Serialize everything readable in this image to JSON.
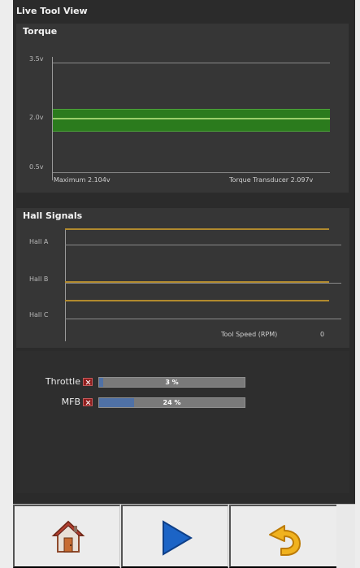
{
  "app": {
    "window_title": "Live Tool View"
  },
  "torque": {
    "title": "Torque",
    "axis_labels": [
      "3.5v",
      "2.0v",
      "0.5v"
    ],
    "footer_left": "Maximum 2.104v",
    "footer_right": "Torque Transducer 2.097v"
  },
  "hall": {
    "title": "Hall Signals",
    "labels": [
      "Hall A",
      "Hall B",
      "Hall C"
    ],
    "speed_label": "Tool Speed (RPM)",
    "speed_value": "0"
  },
  "status": {
    "rows": [
      {
        "label": "Throttle",
        "value_text": "3 %",
        "value_fraction": 0.03
      },
      {
        "label": "MFB",
        "value_text": "24 %",
        "value_fraction": 0.24
      }
    ]
  },
  "toolbar": {
    "buttons": [
      {
        "icon": "home-icon"
      },
      {
        "icon": "play-icon"
      },
      {
        "icon": "undo-icon"
      }
    ]
  }
}
